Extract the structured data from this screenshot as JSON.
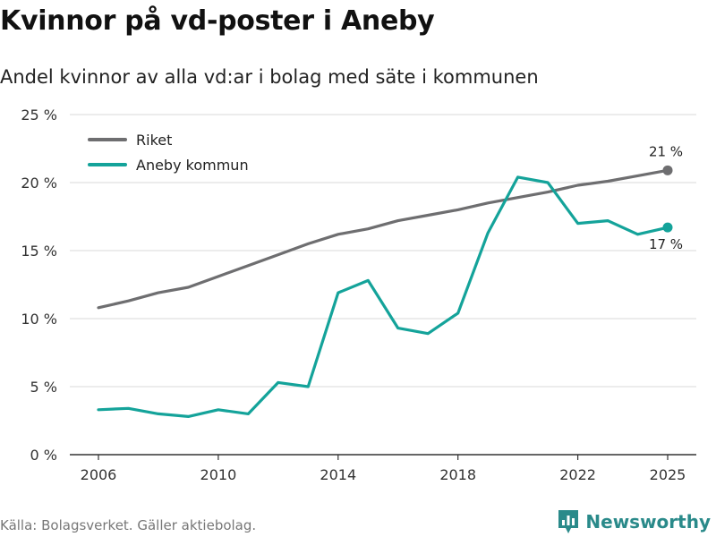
{
  "header": {
    "title": "Kvinnor på vd-poster i Aneby",
    "subtitle": "Andel kvinnor av alla vd:ar i bolag med säte i kommunen"
  },
  "footer": {
    "source": "Källa: Bolagsverket. Gäller aktiebolag.",
    "brand": "Newsworthy"
  },
  "colors": {
    "riket": "#6e6e70",
    "aneby": "#14a39a",
    "grid": "#d9d9d9",
    "axis": "#333333",
    "brand": "#2a8a8a"
  },
  "chart_data": {
    "type": "line",
    "title": "Kvinnor på vd-poster i Aneby",
    "subtitle": "Andel kvinnor av alla vd:ar i bolag med säte i kommunen",
    "xlabel": "",
    "ylabel": "",
    "x": [
      2006,
      2007,
      2008,
      2009,
      2010,
      2011,
      2012,
      2013,
      2014,
      2015,
      2016,
      2017,
      2018,
      2019,
      2020,
      2021,
      2022,
      2023,
      2024,
      2025
    ],
    "xticks": [
      2006,
      2010,
      2014,
      2018,
      2022,
      2025
    ],
    "xtick_labels": [
      "2006",
      "2010",
      "2014",
      "2018",
      "2022",
      "2025"
    ],
    "xlim": [
      2006,
      2025
    ],
    "ylim": [
      0,
      25
    ],
    "yticks": [
      0,
      5,
      10,
      15,
      20,
      25
    ],
    "ytick_labels": [
      "0 %",
      "5 %",
      "10 %",
      "15 %",
      "20 %",
      "25 %"
    ],
    "grid": true,
    "legend_position": "top-left",
    "series": [
      {
        "name": "Riket",
        "color": "#6e6e70",
        "values": [
          10.8,
          11.3,
          11.9,
          12.3,
          13.1,
          13.9,
          14.7,
          15.5,
          16.2,
          16.6,
          17.2,
          17.6,
          18.0,
          18.5,
          18.9,
          19.3,
          19.8,
          20.1,
          20.5,
          20.9
        ],
        "end_label": "21 %"
      },
      {
        "name": "Aneby kommun",
        "color": "#14a39a",
        "values": [
          3.3,
          3.4,
          3.0,
          2.8,
          3.3,
          3.0,
          5.3,
          5.0,
          11.9,
          12.8,
          9.3,
          8.9,
          10.4,
          16.3,
          20.4,
          20.0,
          17.0,
          17.2,
          16.2,
          16.7
        ],
        "end_label": "17 %"
      }
    ]
  }
}
